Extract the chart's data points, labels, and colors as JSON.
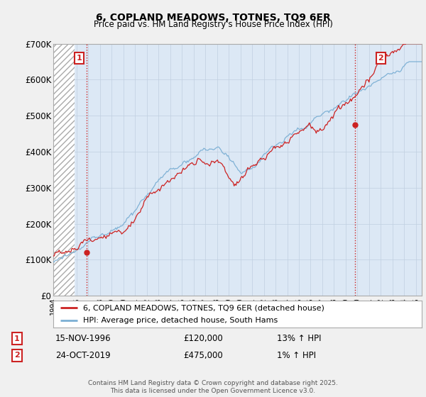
{
  "title1": "6, COPLAND MEADOWS, TOTNES, TQ9 6ER",
  "title2": "Price paid vs. HM Land Registry's House Price Index (HPI)",
  "legend1": "6, COPLAND MEADOWS, TOTNES, TQ9 6ER (detached house)",
  "legend2": "HPI: Average price, detached house, South Hams",
  "annotation1_date": "15-NOV-1996",
  "annotation1_price": "£120,000",
  "annotation1_hpi": "13% ↑ HPI",
  "annotation2_date": "24-OCT-2019",
  "annotation2_price": "£475,000",
  "annotation2_hpi": "1% ↑ HPI",
  "footer": "Contains HM Land Registry data © Crown copyright and database right 2025.\nThis data is licensed under the Open Government Licence v3.0.",
  "ylim": [
    0,
    700000
  ],
  "yticks": [
    0,
    100000,
    200000,
    300000,
    400000,
    500000,
    600000,
    700000
  ],
  "ylabels": [
    "£0",
    "£100K",
    "£200K",
    "£300K",
    "£400K",
    "£500K",
    "£600K",
    "£700K"
  ],
  "hpi_color": "#7bafd4",
  "price_color": "#cc2222",
  "bg_color": "#f0f0f0",
  "plot_bg": "#dce8f5",
  "hatch_bg": "#ffffff",
  "annotation_box_color": "#cc2222",
  "grid_color": "#c0cfe0",
  "dot_line_color": "#cc2222",
  "sale1_x": 1996.87,
  "sale1_y": 120000,
  "sale2_x": 2019.8,
  "sale2_y": 475000,
  "xmin": 1994,
  "xmax": 2025.5
}
